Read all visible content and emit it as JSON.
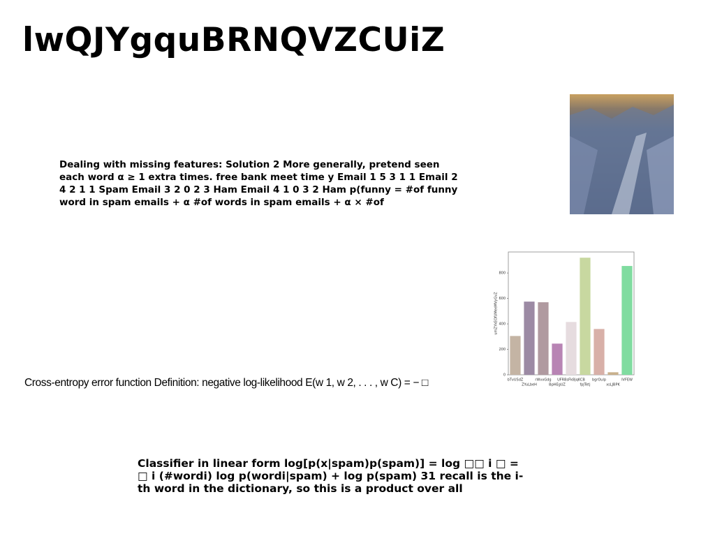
{
  "title": "lwQJYgquBRNQVZCUiZ",
  "paragraphs": [
    "Dealing with missing features: Solution 2 More generally, pretend seen each word α ≥ 1 extra times. free bank meet time y Email 1 5 3 1 1 Email 2 4 2 1 1 Spam Email 3 2 0 2 3 Ham Email 4 1 0 3 2 Ham p(funny = #of funny word in spam emails + α #of words in spam emails + α × #of",
    "Cross-entropy error function Definition: negative log-likelihood E(w 1, w 2, . . . , w C) = − □",
    "Classifier in linear form log[p(x|spam)p(spam)] = log □□ i □ = □ i (#wordi) log p(wordi|spam) + log p(spam) 31 recall is the i-th word in the dictionary, so this is a product over all"
  ],
  "chart_data": {
    "type": "bar",
    "ylabel": "umZYkEOfUMeeMVyGvZ",
    "categories": [
      "bTvUSdZ",
      "ZYuLbeH",
      "rWvxGdg",
      "BpHEgUZ",
      "UFRBsFkBjqKCB",
      "fpJTetj",
      "bgrOulp",
      "xsLJBPK",
      "IVFEW"
    ],
    "values": [
      305,
      575,
      570,
      245,
      415,
      920,
      360,
      20,
      855
    ],
    "colors": [
      "#c4b4a4",
      "#9c8aa4",
      "#b09aa0",
      "#b884b4",
      "#e6dcdf",
      "#c8d8a0",
      "#d8b0a8",
      "#c8b08c",
      "#80dca0"
    ],
    "ylim": [
      0,
      965
    ],
    "yticks": [
      0,
      200,
      400,
      600,
      800
    ]
  }
}
